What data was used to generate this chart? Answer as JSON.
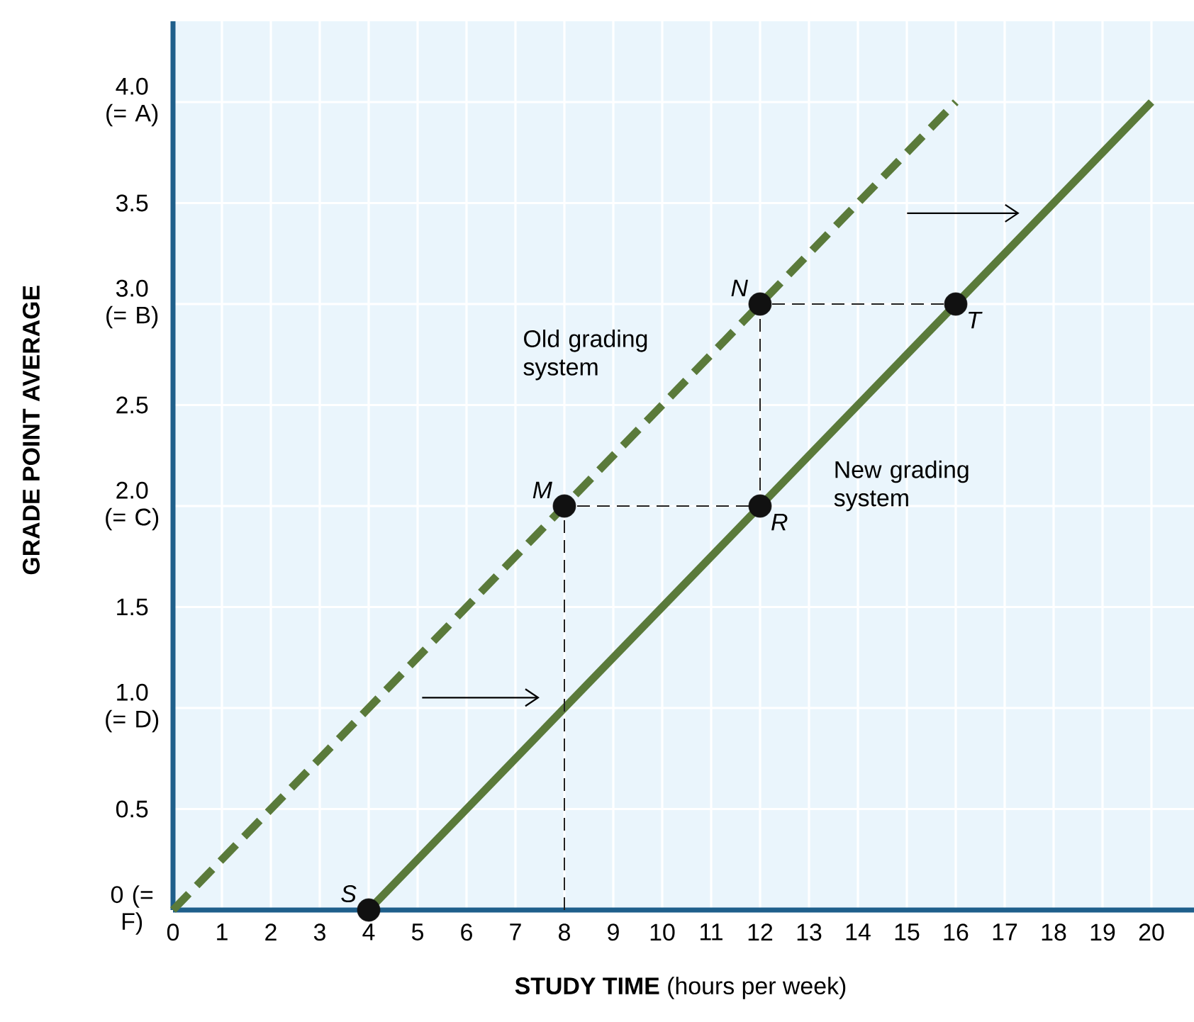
{
  "chart_data": {
    "type": "line",
    "xlabel": "**STUDY TIME** (hours per week)",
    "ylabel": "GRADE POINT AVERAGE",
    "xlim": [
      0,
      20.87
    ],
    "ylim": [
      0,
      4.4
    ],
    "xticks": [
      0,
      1,
      2,
      3,
      4,
      5,
      6,
      7,
      8,
      9,
      10,
      11,
      12,
      13,
      14,
      15,
      16,
      17,
      18,
      19,
      20
    ],
    "yticks": [
      {
        "value": 0,
        "label": "0 (= F)"
      },
      0.5,
      {
        "value": 1,
        "label": "1.0 (= D)"
      },
      1.5,
      {
        "value": 2,
        "label": "2.0 (= C)"
      },
      2.5,
      {
        "value": 3,
        "label": "3.0 (= B)"
      },
      3.5,
      {
        "value": 4,
        "label": "4.0 (= A)"
      }
    ],
    "grid": true,
    "series": [
      {
        "name": "Old grading system",
        "color": "#5a7a3a",
        "line_style": "dashed",
        "marker": "none",
        "x": [
          0,
          16
        ],
        "values": [
          0,
          4
        ]
      },
      {
        "name": "New grading system",
        "color": "#5a7a3a",
        "line_style": "solid",
        "marker": "none",
        "x": [
          4,
          20
        ],
        "values": [
          0,
          4
        ]
      },
      {
        "color": "#222222",
        "line_style": "dashed",
        "marker": "none",
        "x": [
          8,
          8,
          12,
          12,
          16
        ],
        "values": [
          0,
          2,
          2,
          3,
          3
        ]
      },
      {
        "type": "scatter",
        "color": "#111111",
        "marker": "circle",
        "x": [
          4,
          8,
          12,
          12,
          16
        ],
        "values": [
          0,
          2,
          3,
          2,
          3
        ],
        "value_labels": [
          "S",
          "M",
          "N",
          "R",
          "T"
        ]
      }
    ]
  }
}
